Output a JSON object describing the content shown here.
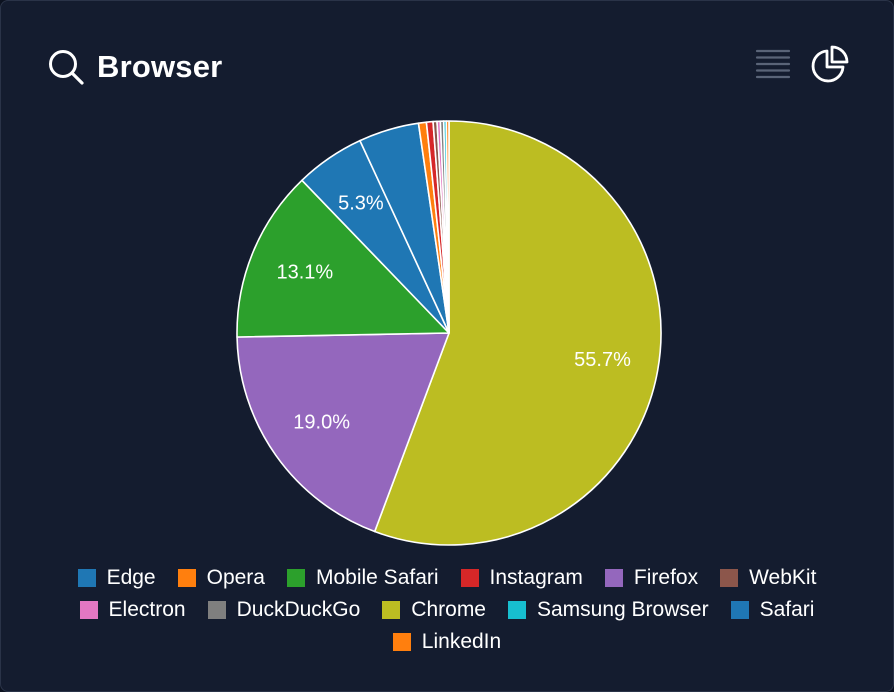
{
  "header": {
    "title": "Browser",
    "search_icon": "search-icon",
    "list_icon": "list-view-icon",
    "chart_icon": "pie-chart-icon"
  },
  "colors": {
    "background": "#141c2f",
    "icon_muted": "#5a6478",
    "icon_active": "#ffffff",
    "slice_border": "#ffffff"
  },
  "chart_data": {
    "type": "pie",
    "title": "Browser",
    "start_angle_deg": 0,
    "direction": "clockwise",
    "legend_position": "bottom",
    "slices": [
      {
        "name": "Chrome",
        "value": 55.7,
        "label": "55.7%",
        "color": "#bcbd22"
      },
      {
        "name": "Firefox",
        "value": 19.0,
        "label": "19.0%",
        "color": "#9467bd"
      },
      {
        "name": "Mobile Safari",
        "value": 13.1,
        "label": "13.1%",
        "color": "#2ca02c"
      },
      {
        "name": "Safari",
        "value": 5.3,
        "label": "5.3%",
        "color": "#1f77b4"
      },
      {
        "name": "Edge",
        "value": 4.6,
        "label": "",
        "color": "#1f77b4"
      },
      {
        "name": "Opera",
        "value": 0.6,
        "label": "",
        "color": "#ff7f0e"
      },
      {
        "name": "Instagram",
        "value": 0.5,
        "label": "",
        "color": "#d62728"
      },
      {
        "name": "WebKit",
        "value": 0.3,
        "label": "",
        "color": "#8c564b"
      },
      {
        "name": "Electron",
        "value": 0.25,
        "label": "",
        "color": "#e377c2"
      },
      {
        "name": "DuckDuckGo",
        "value": 0.25,
        "label": "",
        "color": "#7f7f7f"
      },
      {
        "name": "Samsung Browser",
        "value": 0.2,
        "label": "",
        "color": "#17becf"
      },
      {
        "name": "LinkedIn",
        "value": 0.2,
        "label": "",
        "color": "#ff7f0e"
      }
    ],
    "legend": [
      {
        "name": "Edge",
        "color": "#1f77b4"
      },
      {
        "name": "Opera",
        "color": "#ff7f0e"
      },
      {
        "name": "Mobile Safari",
        "color": "#2ca02c"
      },
      {
        "name": "Instagram",
        "color": "#d62728"
      },
      {
        "name": "Firefox",
        "color": "#9467bd"
      },
      {
        "name": "WebKit",
        "color": "#8c564b"
      },
      {
        "name": "Electron",
        "color": "#e377c2"
      },
      {
        "name": "DuckDuckGo",
        "color": "#7f7f7f"
      },
      {
        "name": "Chrome",
        "color": "#bcbd22"
      },
      {
        "name": "Samsung Browser",
        "color": "#17becf"
      },
      {
        "name": "Safari",
        "color": "#1f77b4"
      },
      {
        "name": "LinkedIn",
        "color": "#ff7f0e"
      }
    ]
  }
}
